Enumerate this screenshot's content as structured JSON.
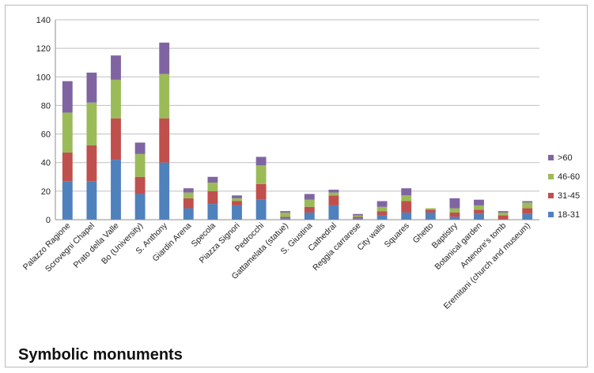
{
  "chart_data": {
    "type": "bar",
    "stacked": true,
    "title": "Symbolic monuments",
    "xlabel": "",
    "ylabel": "",
    "ylim": [
      0,
      140
    ],
    "yticks": [
      0,
      20,
      40,
      60,
      80,
      100,
      120,
      140
    ],
    "grid": true,
    "legend_position": "right",
    "categories": [
      "Palazzo Ragione",
      "Scrovegni Chapel",
      "Prato della Valle",
      "Bo (University)",
      "S. Anthony",
      "Giardin Arena",
      "Specola",
      "Piazza Signori",
      "Pedrocchi",
      "Gattamelata (statue)",
      "S. Giustina",
      "Cathedral",
      "Reggia carrarese",
      "City walls",
      "Squares",
      "Ghetto",
      "Baptistry",
      "Botanical garden",
      "Antenore's tomb",
      "Eremitani (church and museum)"
    ],
    "series": [
      {
        "name": "18-31",
        "color": "#4f81bd",
        "values": [
          27,
          27,
          42,
          18,
          40,
          8,
          11,
          10,
          14,
          1,
          5,
          10,
          1,
          3,
          5,
          5,
          2,
          4,
          0,
          4
        ]
      },
      {
        "name": "31-45",
        "color": "#c0504d",
        "values": [
          20,
          25,
          29,
          12,
          31,
          7,
          9,
          3,
          11,
          1,
          4,
          7,
          1,
          3,
          8,
          2,
          3,
          3,
          3,
          4
        ]
      },
      {
        "name": "46-60",
        "color": "#9bbb59",
        "values": [
          28,
          30,
          27,
          16,
          31,
          4,
          6,
          2,
          13,
          3,
          5,
          2,
          1,
          3,
          4,
          1,
          3,
          3,
          2,
          4
        ]
      },
      {
        "name": ">60",
        "color": "#8064a2",
        "values": [
          22,
          21,
          17,
          8,
          22,
          3,
          4,
          2,
          6,
          1,
          4,
          2,
          1,
          4,
          5,
          0,
          7,
          4,
          1,
          1
        ]
      }
    ]
  }
}
